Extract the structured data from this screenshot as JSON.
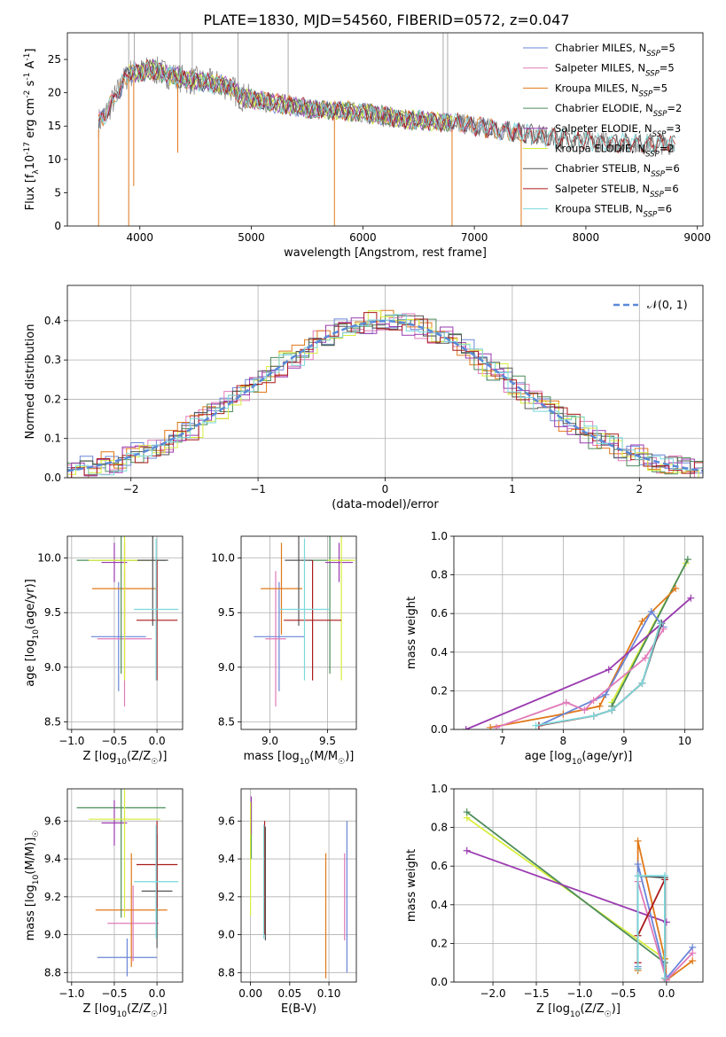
{
  "title": "PLATE=1830, MJD=54560, FIBERID=0572, z=0.047",
  "colors": {
    "Chabrier MILES": "#6a86d8",
    "Salpeter MILES": "#e07ab8",
    "Kroupa MILES": "#e07818",
    "Chabrier ELODIE": "#4c8c5a",
    "Salpeter ELODIE": "#9a3ab0",
    "Kroupa ELODIE": "#d7ee3a",
    "Chabrier STELIB": "#555555",
    "Salpeter STELIB": "#aa1a1a",
    "Kroupa STELIB": "#7ad8dc",
    "gaussian": "#5a8ad8"
  },
  "legend_spectrum": [
    {
      "label": "Chabrier MILES, N",
      "sub": "SSP",
      "tail": "=5",
      "color_key": "Chabrier MILES"
    },
    {
      "label": "Salpeter MILES, N",
      "sub": "SSP",
      "tail": "=5",
      "color_key": "Salpeter MILES"
    },
    {
      "label": "Kroupa MILES, N",
      "sub": "SSP",
      "tail": "=5",
      "color_key": "Kroupa MILES"
    },
    {
      "label": "Chabrier ELODIE, N",
      "sub": "SSP",
      "tail": "=2",
      "color_key": "Chabrier ELODIE"
    },
    {
      "label": "Salpeter ELODIE, N",
      "sub": "SSP",
      "tail": "=3",
      "color_key": "Salpeter ELODIE"
    },
    {
      "label": "Kroupa ELODIE, N",
      "sub": "SSP",
      "tail": "=2",
      "color_key": "Kroupa ELODIE"
    },
    {
      "label": "Chabrier STELIB, N",
      "sub": "SSP",
      "tail": "=6",
      "color_key": "Chabrier STELIB"
    },
    {
      "label": "Salpeter STELIB, N",
      "sub": "SSP",
      "tail": "=6",
      "color_key": "Salpeter STELIB"
    },
    {
      "label": "Kroupa STELIB, N",
      "sub": "SSP",
      "tail": "=6",
      "color_key": "Kroupa STELIB"
    }
  ],
  "legend_hist": "𝒩(0, 1)",
  "chart_data": [
    {
      "id": "spectrum",
      "type": "line",
      "xlabel": "wavelength [Angstrom, rest frame]",
      "ylabel": "Flux [f",
      "ylabel_sub": "λ",
      "ylabel_tail": "10",
      "ylabel_sup1": "-17",
      "ylabel_tail2": " erg cm",
      "ylabel_sup2": "-2",
      "ylabel_tail3": " s",
      "ylabel_sup3": "-1",
      "ylabel_tail4": " A",
      "ylabel_sup4": "-1",
      "ylabel_tail5": "]",
      "xlim": [
        3350,
        9050
      ],
      "ylim": [
        0,
        29
      ],
      "xticks": [
        4000,
        5000,
        6000,
        7000,
        8000,
        9000
      ],
      "yticks": [
        0,
        5,
        10,
        15,
        20,
        25
      ],
      "continuum": [
        [
          3630,
          15.5
        ],
        [
          3700,
          17
        ],
        [
          3800,
          20
        ],
        [
          3900,
          23
        ],
        [
          4000,
          23
        ],
        [
          4100,
          23.5
        ],
        [
          4200,
          23
        ],
        [
          4300,
          22.5
        ],
        [
          4400,
          22
        ],
        [
          4600,
          21.5
        ],
        [
          4800,
          21
        ],
        [
          4900,
          19.5
        ],
        [
          5000,
          19
        ],
        [
          5200,
          18.5
        ],
        [
          5400,
          18
        ],
        [
          5600,
          17.5
        ],
        [
          5800,
          17.3
        ],
        [
          6000,
          17
        ],
        [
          6200,
          16.5
        ],
        [
          6400,
          16
        ],
        [
          6600,
          15.8
        ],
        [
          6800,
          15.5
        ],
        [
          7000,
          15
        ],
        [
          7200,
          14.5
        ],
        [
          7400,
          14
        ],
        [
          7600,
          13.5
        ],
        [
          7800,
          13
        ],
        [
          8000,
          12.8
        ],
        [
          8200,
          12.6
        ],
        [
          8400,
          12.5
        ],
        [
          8600,
          12.3
        ],
        [
          8800,
          12.2
        ]
      ],
      "dips": [
        {
          "x": 3630,
          "y": 0
        },
        {
          "x": 3900,
          "y": 0
        },
        {
          "x": 3945,
          "y": 6
        },
        {
          "x": 4340,
          "y": 11
        },
        {
          "x": 5745,
          "y": 0
        },
        {
          "x": 6800,
          "y": 0
        },
        {
          "x": 7420,
          "y": 0
        }
      ],
      "spikes": [
        {
          "x": 3900,
          "y": 29
        },
        {
          "x": 3950,
          "y": 29
        },
        {
          "x": 4360,
          "y": 29
        },
        {
          "x": 4470,
          "y": 29
        },
        {
          "x": 4880,
          "y": 29
        },
        {
          "x": 5330,
          "y": 29
        },
        {
          "x": 6720,
          "y": 29
        },
        {
          "x": 6760,
          "y": 29
        }
      ]
    },
    {
      "id": "histogram",
      "type": "line",
      "xlabel": "(data-model)/error",
      "ylabel": "Normed distribution",
      "xlim": [
        -2.5,
        2.5
      ],
      "ylim": [
        0,
        0.49
      ],
      "xticks": [
        -2,
        -1,
        0,
        1,
        2
      ],
      "yticks": [
        0.0,
        0.1,
        0.2,
        0.3,
        0.4
      ],
      "gaussian": {
        "mean": 0,
        "sigma": 1
      }
    },
    {
      "id": "age-z",
      "type": "scatter",
      "xlabel": "Z [log",
      "xlabel_sub": "10",
      "xlabel_tail": "(Z/Z",
      "xlabel_sub2": "☉",
      "xlabel_tail2": ")]",
      "ylabel": "age  [log",
      "ylabel_sub": "10",
      "ylabel_tail": "(age/yr)]",
      "xlim": [
        -1.05,
        0.3
      ],
      "ylim": [
        8.43,
        10.2
      ],
      "xticks": [
        -1.0,
        -0.5,
        0.0
      ],
      "yticks": [
        8.5,
        9.0,
        9.5,
        10.0
      ],
      "points": [
        {
          "k": "Chabrier MILES",
          "x": -0.45,
          "xe": 0.32,
          "y": 9.28,
          "ye": 0.5
        },
        {
          "k": "Salpeter MILES",
          "x": -0.38,
          "xe": 0.32,
          "y": 9.26,
          "ye": 0.62
        },
        {
          "k": "Kroupa MILES",
          "x": -0.38,
          "xe": 0.38,
          "y": 9.72,
          "ye": 0.42
        },
        {
          "k": "Chabrier ELODIE",
          "x": -0.42,
          "xe": 0.52,
          "y": 9.98,
          "ye": 1.04
        },
        {
          "k": "Salpeter ELODIE",
          "x": -0.5,
          "xe": 0.15,
          "y": 9.96,
          "ye": 0.18
        },
        {
          "k": "Kroupa ELODIE",
          "x": -0.38,
          "xe": 0.42,
          "y": 9.98,
          "ye": 1.1
        },
        {
          "k": "Chabrier STELIB",
          "x": -0.05,
          "xe": 0.18,
          "y": 9.98,
          "ye": 0.6
        },
        {
          "k": "Salpeter STELIB",
          "x": 0.0,
          "xe": 0.24,
          "y": 9.43,
          "ye": 0.55
        },
        {
          "k": "Kroupa STELIB",
          "x": -0.01,
          "xe": 0.26,
          "y": 9.53,
          "ye": 0.65
        }
      ]
    },
    {
      "id": "age-mass",
      "type": "scatter",
      "xlabel": "mass [log",
      "xlabel_sub": "10",
      "xlabel_tail": "(M/M",
      "xlabel_sub2": "☉",
      "xlabel_tail2": ")]",
      "xlim": [
        8.75,
        9.75
      ],
      "ylim": [
        8.43,
        10.2
      ],
      "xticks": [
        9.0,
        9.5
      ],
      "yticks": [
        8.5,
        9.0,
        9.5,
        10.0
      ],
      "points": [
        {
          "k": "Chabrier MILES",
          "x": 9.08,
          "xe": 0.22,
          "y": 9.28,
          "ye": 0.5
        },
        {
          "k": "Salpeter MILES",
          "x": 9.05,
          "xe": 0.09,
          "y": 9.26,
          "ye": 0.62
        },
        {
          "k": "Kroupa MILES",
          "x": 9.1,
          "xe": 0.18,
          "y": 9.72,
          "ye": 0.42
        },
        {
          "k": "Chabrier ELODIE",
          "x": 9.52,
          "xe": 0.18,
          "y": 9.98,
          "ye": 1.04
        },
        {
          "k": "Salpeter ELODIE",
          "x": 9.6,
          "xe": 0.12,
          "y": 9.96,
          "ye": 0.18
        },
        {
          "k": "Kroupa ELODIE",
          "x": 9.62,
          "xe": 0.12,
          "y": 9.98,
          "ye": 1.1
        },
        {
          "k": "Chabrier STELIB",
          "x": 9.25,
          "xe": 0.12,
          "y": 9.98,
          "ye": 0.6
        },
        {
          "k": "Salpeter STELIB",
          "x": 9.37,
          "xe": 0.25,
          "y": 9.43,
          "ye": 0.55
        },
        {
          "k": "Kroupa STELIB",
          "x": 9.3,
          "xe": 0.22,
          "y": 9.53,
          "ye": 0.65
        }
      ]
    },
    {
      "id": "mw-age",
      "type": "line",
      "xlabel": "age  [log",
      "xlabel_sub": "10",
      "xlabel_tail": "(age/yr)]",
      "ylabel": "mass weight",
      "xlim": [
        6.2,
        10.3
      ],
      "ylim": [
        0,
        1.0
      ],
      "xticks": [
        7,
        8,
        9,
        10
      ],
      "yticks": [
        0.0,
        0.2,
        0.4,
        0.6,
        0.8,
        1.0
      ],
      "series": [
        {
          "k": "Kroupa ELODIE",
          "x": [
            8.8,
            10.02
          ],
          "y": [
            0.14,
            0.86
          ]
        },
        {
          "k": "Chabrier ELODIE",
          "x": [
            8.8,
            10.05
          ],
          "y": [
            0.12,
            0.88
          ]
        },
        {
          "k": "Kroupa MILES",
          "x": [
            6.8,
            8.0,
            8.6,
            9.3,
            9.85
          ],
          "y": [
            0.01,
            0.08,
            0.12,
            0.56,
            0.73
          ]
        },
        {
          "k": "Chabrier MILES",
          "x": [
            7.6,
            8.7,
            9.45,
            9.65
          ],
          "y": [
            0.02,
            0.18,
            0.61,
            0.53
          ]
        },
        {
          "k": "Salpeter MILES",
          "x": [
            6.9,
            8.05,
            8.35,
            8.5,
            9.35,
            9.65
          ],
          "y": [
            0.01,
            0.14,
            0.1,
            0.15,
            0.37,
            0.52
          ]
        },
        {
          "k": "Salpeter ELODIE",
          "x": [
            6.4,
            8.75,
            10.1
          ],
          "y": [
            0.0,
            0.31,
            0.68
          ]
        },
        {
          "k": "Chabrier STELIB",
          "x": [
            7.6,
            8.5,
            8.8,
            9.3,
            9.62
          ],
          "y": [
            0.02,
            0.07,
            0.1,
            0.24,
            0.55
          ]
        },
        {
          "k": "Salpeter STELIB",
          "x": [
            7.6,
            8.5,
            8.8,
            9.3,
            9.6
          ],
          "y": [
            0.02,
            0.07,
            0.1,
            0.24,
            0.55
          ]
        },
        {
          "k": "Kroupa STELIB",
          "x": [
            7.55,
            8.5,
            8.8,
            9.3,
            9.6
          ],
          "y": [
            0.02,
            0.07,
            0.1,
            0.24,
            0.55
          ]
        }
      ]
    },
    {
      "id": "mass-z",
      "type": "scatter",
      "xlabel": "Z [log",
      "xlabel_sub": "10",
      "xlabel_tail": "(Z/Z",
      "xlabel_sub2": "☉",
      "xlabel_tail2": ")]",
      "ylabel": "mass [log",
      "ylabel_sub": "10",
      "ylabel_tail": "(M/M",
      "ylabel_sub2": "☉",
      "ylabel_tail2": ")]",
      "xlim": [
        -1.05,
        0.3
      ],
      "ylim": [
        8.75,
        9.77
      ],
      "xticks": [
        -1.0,
        -0.5,
        0.0
      ],
      "yticks": [
        8.8,
        9.0,
        9.2,
        9.4,
        9.6
      ],
      "points": [
        {
          "k": "Chabrier MILES",
          "x": -0.35,
          "xe": 0.35,
          "y": 8.88,
          "ye": 0.1
        },
        {
          "k": "Salpeter MILES",
          "x": -0.28,
          "xe": 0.3,
          "y": 9.06,
          "ye": 0.2
        },
        {
          "k": "Kroupa MILES",
          "x": -0.3,
          "xe": 0.42,
          "y": 9.13,
          "ye": 0.3
        },
        {
          "k": "Chabrier ELODIE",
          "x": -0.42,
          "xe": 0.52,
          "y": 9.67,
          "ye": 0.58
        },
        {
          "k": "Salpeter ELODIE",
          "x": -0.5,
          "xe": 0.15,
          "y": 9.59,
          "ye": 0.12
        },
        {
          "k": "Kroupa ELODIE",
          "x": -0.38,
          "xe": 0.42,
          "y": 9.61,
          "ye": 0.52
        },
        {
          "k": "Chabrier STELIB",
          "x": 0.0,
          "xe": 0.18,
          "y": 9.23,
          "ye": 0.3
        },
        {
          "k": "Salpeter STELIB",
          "x": 0.0,
          "xe": 0.24,
          "y": 9.37,
          "ye": 0.23
        },
        {
          "k": "Kroupa STELIB",
          "x": -0.01,
          "xe": 0.26,
          "y": 9.28,
          "ye": 0.3
        }
      ]
    },
    {
      "id": "mass-ebv",
      "type": "scatter",
      "xlabel": "E(B-V)",
      "xlim": [
        -0.012,
        0.135
      ],
      "ylim": [
        8.75,
        9.77
      ],
      "xticks": [
        0.0,
        0.05,
        0.1
      ],
      "yticks": [
        8.8,
        9.0,
        9.2,
        9.4,
        9.6
      ],
      "points": [
        {
          "k": "Chabrier MILES",
          "x": 0.123,
          "y": 9.2,
          "ye": 0.4
        },
        {
          "k": "Salpeter MILES",
          "x": 0.12,
          "y": 9.2,
          "ye": 0.23
        },
        {
          "k": "Kroupa MILES",
          "x": 0.096,
          "y": 9.1,
          "ye": 0.33
        },
        {
          "k": "Chabrier ELODIE",
          "x": 0.001,
          "y": 9.55,
          "ye": 0.15
        },
        {
          "k": "Salpeter ELODIE",
          "x": 0.001,
          "y": 9.63,
          "ye": 0.1
        },
        {
          "k": "Kroupa ELODIE",
          "x": 0.0,
          "y": 9.4,
          "ye": 0.3
        },
        {
          "k": "Chabrier STELIB",
          "x": 0.019,
          "y": 9.27,
          "ye": 0.3
        },
        {
          "k": "Salpeter STELIB",
          "x": 0.018,
          "y": 9.3,
          "ye": 0.3
        },
        {
          "k": "Kroupa STELIB",
          "x": 0.017,
          "y": 9.28,
          "ye": 0.3
        }
      ]
    },
    {
      "id": "mw-z",
      "type": "line",
      "xlabel": "Z [log",
      "xlabel_sub": "10",
      "xlabel_tail": "(Z/Z",
      "xlabel_sub2": "☉",
      "xlabel_tail2": ")]",
      "ylabel": "mass weight",
      "xlim": [
        -2.45,
        0.42
      ],
      "ylim": [
        0,
        1.0
      ],
      "xticks": [
        -2.0,
        -1.5,
        -1.0,
        -0.5,
        0.0
      ],
      "yticks": [
        0.0,
        0.2,
        0.4,
        0.6,
        0.8,
        1.0
      ],
      "series": [
        {
          "k": "Kroupa ELODIE",
          "x": [
            -2.3,
            -0.02
          ],
          "y": [
            0.85,
            0.12
          ]
        },
        {
          "k": "Chabrier ELODIE",
          "x": [
            -2.3,
            -0.02
          ],
          "y": [
            0.88,
            0.1
          ]
        },
        {
          "k": "Salpeter ELODIE",
          "x": [
            -2.3,
            0.0
          ],
          "y": [
            0.68,
            0.31
          ]
        },
        {
          "k": "Kroupa MILES",
          "x": [
            -0.33,
            -0.33,
            -0.02,
            0.0,
            0.3
          ],
          "y": [
            0.06,
            0.73,
            0.12,
            0.01,
            0.11
          ]
        },
        {
          "k": "Chabrier MILES",
          "x": [
            -0.33,
            -0.33,
            0.0,
            0.3
          ],
          "y": [
            0.08,
            0.61,
            0.02,
            0.18
          ]
        },
        {
          "k": "Salpeter MILES",
          "x": [
            -0.33,
            -0.33,
            0.0,
            0.3
          ],
          "y": [
            0.1,
            0.52,
            0.01,
            0.15
          ]
        },
        {
          "k": "Chabrier STELIB",
          "x": [
            -0.33,
            -0.33,
            -0.02,
            -0.02
          ],
          "y": [
            0.07,
            0.55,
            0.54,
            0.02
          ]
        },
        {
          "k": "Salpeter STELIB",
          "x": [
            -0.33,
            -0.33,
            -0.02,
            -0.02
          ],
          "y": [
            0.1,
            0.24,
            0.53,
            0.02
          ]
        },
        {
          "k": "Kroupa STELIB",
          "x": [
            -0.33,
            -0.33,
            -0.02,
            -0.02
          ],
          "y": [
            0.07,
            0.55,
            0.55,
            0.02
          ]
        }
      ]
    }
  ]
}
